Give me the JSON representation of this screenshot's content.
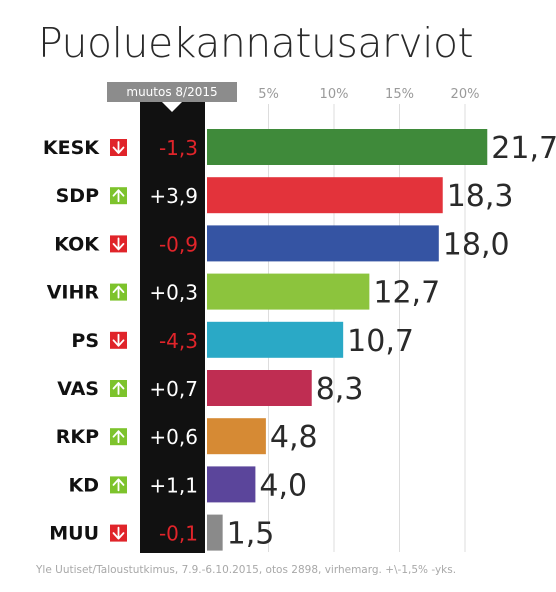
{
  "title": "Puoluekannatusarviot",
  "change_header": "muutos 8/2015",
  "footnote": "Yle Uutiset/Taloustutkimus, 7.9.-6.10.2015, otos 2898, virhemarg. +\\-1,5% -yks.",
  "colors": {
    "up_arrow": "#7dc32c",
    "down_arrow": "#e0242a",
    "negative_change": "#e0242a",
    "positive_change": "#ffffff",
    "change_column_bg": "#111111",
    "gridline": "#dddddd",
    "tick_label": "#9a9a9a"
  },
  "chart_data": {
    "type": "bar",
    "orientation": "horizontal",
    "title": "Puoluekannatusarviot",
    "categories": [
      "KESK",
      "SDP",
      "KOK",
      "VIHR",
      "PS",
      "VAS",
      "RKP",
      "KD",
      "MUU"
    ],
    "values": [
      21.7,
      18.3,
      18.0,
      12.7,
      10.7,
      8.3,
      4.8,
      4.0,
      1.5
    ],
    "value_labels": [
      "21,7",
      "18,3",
      "18,0",
      "12,7",
      "10,7",
      "8,3",
      "4,8",
      "4,0",
      "1,5"
    ],
    "changes": [
      -1.3,
      3.9,
      -0.9,
      0.3,
      -4.3,
      0.7,
      0.6,
      1.1,
      -0.1
    ],
    "change_labels": [
      "-1,3",
      "+3,9",
      "-0,9",
      "+0,3",
      "-4,3",
      "+0,7",
      "+0,6",
      "+1,1",
      "-0,1"
    ],
    "change_direction": [
      "down",
      "up",
      "down",
      "up",
      "down",
      "up",
      "up",
      "up",
      "down"
    ],
    "bar_colors": [
      "#3f8a3a",
      "#e3333b",
      "#3554a3",
      "#8cc43d",
      "#2aa9c6",
      "#bf2d52",
      "#d68a34",
      "#5b459b",
      "#8a8a8a"
    ],
    "x_ticks": [
      5,
      10,
      15,
      20
    ],
    "x_tick_labels": [
      "5%",
      "10%",
      "15%",
      "20%"
    ],
    "xlim": [
      0,
      25
    ],
    "grid": true
  }
}
